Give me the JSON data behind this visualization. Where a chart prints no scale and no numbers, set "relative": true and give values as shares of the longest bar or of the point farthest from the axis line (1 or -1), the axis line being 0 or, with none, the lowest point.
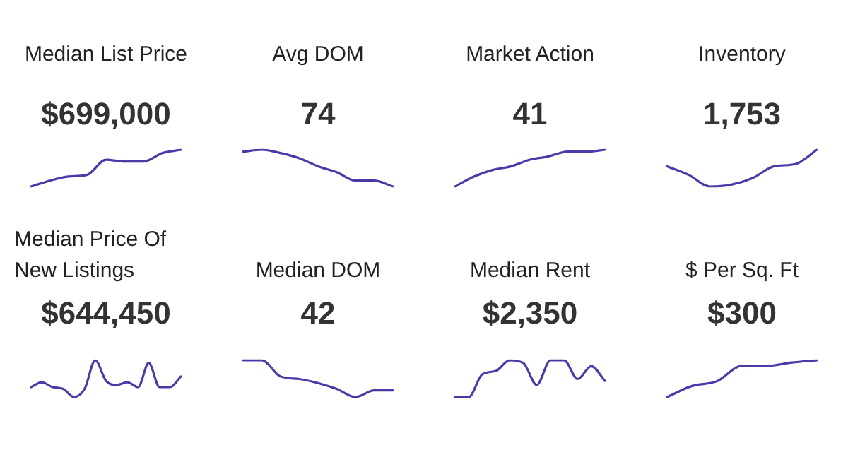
{
  "chart_data": [
    {
      "type": "line",
      "title": "Median List Price",
      "subtitle": "$699,000",
      "relative": true,
      "categories": [
        null,
        null,
        null,
        null,
        null,
        null,
        null,
        null,
        null
      ],
      "series": [
        {
          "color": "#4a3aa8",
          "values": [
            0,
            0.16,
            0.27,
            0.32,
            0.73,
            0.68,
            0.68,
            0.91,
            1
          ]
        }
      ]
    },
    {
      "type": "line",
      "title": "Avg DOM",
      "subtitle": "74",
      "relative": true,
      "categories": [
        null,
        null,
        null,
        null,
        null,
        null,
        null,
        null,
        null
      ],
      "series": [
        {
          "color": "#4a3aa8",
          "values": [
            0.95,
            1,
            0.91,
            0.77,
            0.55,
            0.39,
            0.16,
            0.16,
            0
          ]
        }
      ]
    },
    {
      "type": "line",
      "title": "Market Action",
      "subtitle": "41",
      "relative": true,
      "categories": [
        null,
        null,
        null,
        null,
        null,
        null,
        null,
        null,
        null
      ],
      "series": [
        {
          "color": "#4a3aa8",
          "values": [
            0,
            0.27,
            0.45,
            0.55,
            0.73,
            0.82,
            0.95,
            0.95,
            1
          ]
        }
      ]
    },
    {
      "type": "line",
      "title": "Inventory",
      "subtitle": "1,753",
      "relative": true,
      "categories": [
        null,
        null,
        null,
        null,
        null,
        null,
        null,
        null
      ],
      "series": [
        {
          "color": "#4a3aa8",
          "values": [
            0.55,
            0.32,
            0,
            0.05,
            0.23,
            0.55,
            0.61,
            1
          ]
        }
      ]
    },
    {
      "type": "line",
      "title": "Median Price Of New Listings",
      "subtitle": "$644,450",
      "relative": true,
      "categories": [
        null,
        null,
        null,
        null,
        null,
        null,
        null,
        null,
        null,
        null,
        null,
        null,
        null,
        null,
        null
      ],
      "series": [
        {
          "color": "#4a3aa8",
          "values": [
            0.27,
            0.4,
            0.27,
            0.22,
            0,
            0.22,
            1,
            0.44,
            0.33,
            0.4,
            0.27,
            0.93,
            0.27,
            0.27,
            0.56
          ]
        }
      ]
    },
    {
      "type": "line",
      "title": "Median DOM",
      "subtitle": "42",
      "relative": true,
      "categories": [
        null,
        null,
        null,
        null,
        null,
        null,
        null,
        null,
        null
      ],
      "series": [
        {
          "color": "#4a3aa8",
          "values": [
            1,
            1,
            0.56,
            0.49,
            0.38,
            0.22,
            0,
            0.18,
            0.18
          ]
        }
      ]
    },
    {
      "type": "line",
      "title": "Median Rent",
      "subtitle": "$2,350",
      "relative": true,
      "categories": [
        null,
        null,
        null,
        null,
        null,
        null,
        null,
        null,
        null,
        null,
        null,
        null
      ],
      "series": [
        {
          "color": "#4a3aa8",
          "values": [
            0,
            0,
            0.62,
            0.71,
            1,
            0.93,
            0.33,
            1,
            1,
            0.49,
            0.84,
            0.44
          ]
        }
      ]
    },
    {
      "type": "line",
      "title": "$ Per Sq. Ft",
      "subtitle": "$300",
      "relative": true,
      "categories": [
        null,
        null,
        null,
        null,
        null,
        null,
        null
      ],
      "series": [
        {
          "color": "#4a3aa8",
          "values": [
            0,
            0.3,
            0.43,
            0.85,
            0.85,
            0.94,
            1
          ]
        }
      ]
    }
  ]
}
